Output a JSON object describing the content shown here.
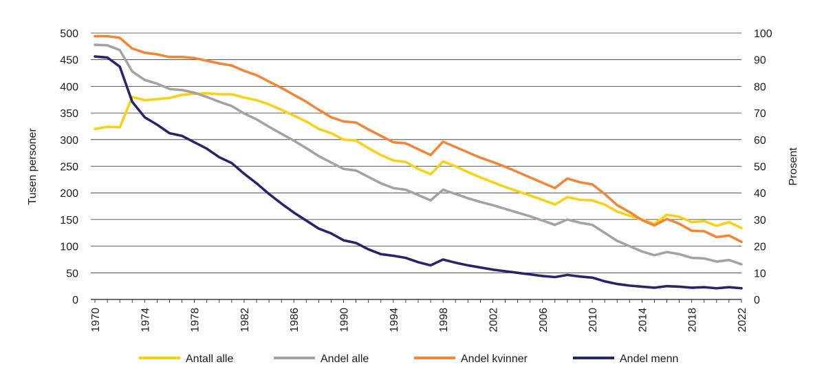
{
  "chart_data": {
    "type": "line",
    "xlabel": "",
    "ylabel_left": "Tusen personer",
    "ylabel_right": "Prosent",
    "ylim_left": [
      0,
      500
    ],
    "ylim_right": [
      0,
      100
    ],
    "yticks_left": [
      "0",
      "50",
      "100",
      "150",
      "200",
      "250",
      "300",
      "350",
      "400",
      "450",
      "500"
    ],
    "yticks_right": [
      "0",
      "10",
      "20",
      "30",
      "40",
      "50",
      "60",
      "70",
      "80",
      "90",
      "100"
    ],
    "xlim": [
      1970,
      2022
    ],
    "xticks": [
      "1970",
      "1974",
      "1978",
      "1982",
      "1986",
      "1990",
      "1994",
      "1998",
      "2002",
      "2006",
      "2010",
      "2014",
      "2018",
      "2022"
    ],
    "grid": "horizontal",
    "legend_position": "bottom",
    "x": [
      1970,
      1971,
      1972,
      1973,
      1974,
      1975,
      1976,
      1977,
      1978,
      1979,
      1980,
      1981,
      1982,
      1983,
      1984,
      1985,
      1986,
      1987,
      1988,
      1989,
      1990,
      1991,
      1992,
      1993,
      1994,
      1995,
      1996,
      1997,
      1998,
      1999,
      2000,
      2001,
      2002,
      2003,
      2004,
      2005,
      2006,
      2007,
      2008,
      2009,
      2010,
      2011,
      2012,
      2013,
      2014,
      2015,
      2016,
      2017,
      2018,
      2019,
      2020,
      2021,
      2022
    ],
    "series": [
      {
        "name": "Antall alle",
        "axis": "left",
        "color": "#f7d117",
        "values": [
          320,
          324,
          323,
          380,
          374,
          376,
          378,
          384,
          386,
          387,
          385,
          385,
          379,
          374,
          366,
          356,
          345,
          334,
          320,
          312,
          300,
          298,
          284,
          271,
          261,
          258,
          245,
          235,
          259,
          250,
          239,
          229,
          220,
          211,
          203,
          195,
          187,
          178,
          192,
          187,
          186,
          178,
          165,
          157,
          150,
          142,
          159,
          155,
          145,
          147,
          138,
          145,
          134
        ]
      },
      {
        "name": "Andel alle",
        "axis": "right",
        "color": "#a3a3a3",
        "values": [
          95.6,
          95.4,
          93.6,
          85.6,
          82.4,
          81.0,
          79.0,
          78.6,
          77.6,
          76.0,
          74.2,
          72.6,
          69.8,
          67.6,
          64.8,
          62.2,
          59.6,
          56.8,
          53.8,
          51.4,
          49.0,
          48.4,
          46.0,
          43.6,
          41.8,
          41.2,
          39.2,
          37.2,
          41.2,
          39.6,
          38.0,
          36.6,
          35.4,
          34.0,
          32.6,
          31.2,
          29.6,
          28.0,
          30.0,
          28.8,
          28.0,
          25.0,
          22.0,
          20.0,
          18.0,
          16.6,
          17.8,
          17.0,
          15.6,
          15.4,
          14.2,
          14.8,
          13.2
        ]
      },
      {
        "name": "Andel kvinner",
        "axis": "right",
        "color": "#f08637",
        "values": [
          98.8,
          98.8,
          98.2,
          94.2,
          92.6,
          92.0,
          91.0,
          91.0,
          90.6,
          89.6,
          88.6,
          87.8,
          85.8,
          84.2,
          81.8,
          79.4,
          76.8,
          74.2,
          71.2,
          68.4,
          66.8,
          66.4,
          63.8,
          61.4,
          59.0,
          58.6,
          56.4,
          54.2,
          59.2,
          57.2,
          55.2,
          53.2,
          51.6,
          49.8,
          47.8,
          45.8,
          43.8,
          41.8,
          45.4,
          44.0,
          43.2,
          39.6,
          35.4,
          32.8,
          29.8,
          27.8,
          30.2,
          28.4,
          25.8,
          25.6,
          23.4,
          24.0,
          21.6
        ]
      },
      {
        "name": "Andel menn",
        "axis": "right",
        "color": "#27246b",
        "values": [
          91.2,
          90.8,
          87.4,
          74.2,
          68.4,
          65.6,
          62.4,
          61.4,
          59.0,
          56.6,
          53.4,
          51.2,
          47.2,
          43.6,
          39.6,
          36.0,
          32.6,
          29.6,
          26.6,
          24.8,
          22.2,
          21.2,
          18.8,
          17.0,
          16.4,
          15.6,
          14.0,
          12.8,
          15.0,
          13.8,
          12.8,
          12.0,
          11.2,
          10.6,
          10.0,
          9.4,
          8.8,
          8.4,
          9.2,
          8.6,
          8.2,
          6.8,
          5.8,
          5.2,
          4.8,
          4.4,
          5.0,
          4.8,
          4.4,
          4.6,
          4.2,
          4.6,
          4.2
        ]
      }
    ]
  }
}
